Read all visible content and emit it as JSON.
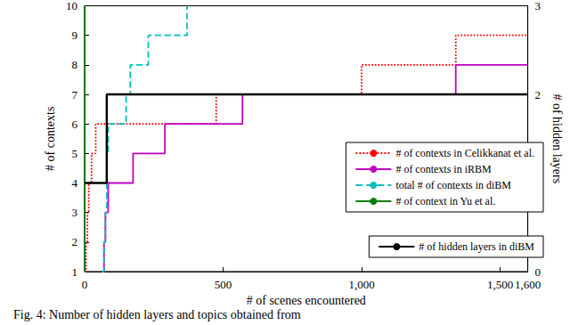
{
  "chart_data": {
    "type": "line",
    "title": "Fig. 4: Number of hidden layers and topics obtained from",
    "x_label": "# of scenes encountered",
    "y_label": "# of contexts",
    "y2_label": "# of hidden layers",
    "xlim": [
      0,
      1600
    ],
    "xticks": [
      0,
      500,
      1000,
      1500
    ],
    "ylim": [
      1,
      10
    ],
    "yticks": [
      1,
      2,
      3,
      4,
      5,
      6,
      7,
      8,
      9,
      10
    ],
    "y2lim": [
      0,
      3
    ],
    "y2ticks": [
      0,
      1,
      2,
      3
    ],
    "grid": false,
    "legend": "lower right",
    "series": [
      {
        "name": "# of contexts in Celikkanat et al.",
        "color": "#ff0000",
        "line_style": "dotted",
        "x": [
          0,
          5,
          10,
          15,
          25,
          40,
          475,
          1000,
          1340,
          1600
        ],
        "values": [
          1,
          2,
          3,
          4,
          5,
          6,
          7,
          8,
          9,
          9
        ]
      },
      {
        "name": "# of contexts in iRBM",
        "color": "#bf00bf",
        "line_style": "solid",
        "x": [
          65,
          70,
          75,
          85,
          175,
          290,
          570,
          1340,
          1600
        ],
        "values": [
          1,
          2,
          3,
          4,
          5,
          6,
          7,
          8,
          8
        ]
      },
      {
        "name": "total # of contexts in diBM",
        "color": "#00bfbf",
        "line_style": "dashed",
        "x": [
          65,
          70,
          75,
          80,
          85,
          150,
          165,
          230,
          370
        ],
        "values": [
          1,
          2,
          3,
          5,
          6,
          7,
          8,
          9,
          10
        ]
      },
      {
        "name": "# of context in Yu et al.",
        "color": "#008000",
        "line_style": "solid",
        "x": [
          0,
          0
        ],
        "values": [
          1,
          10
        ]
      },
      {
        "name": "# of hidden layers in diBM",
        "color": "#000000",
        "line_style": "solid",
        "axis": "y2",
        "x": [
          0,
          80,
          1600
        ],
        "values": [
          1,
          2,
          2
        ]
      }
    ]
  }
}
